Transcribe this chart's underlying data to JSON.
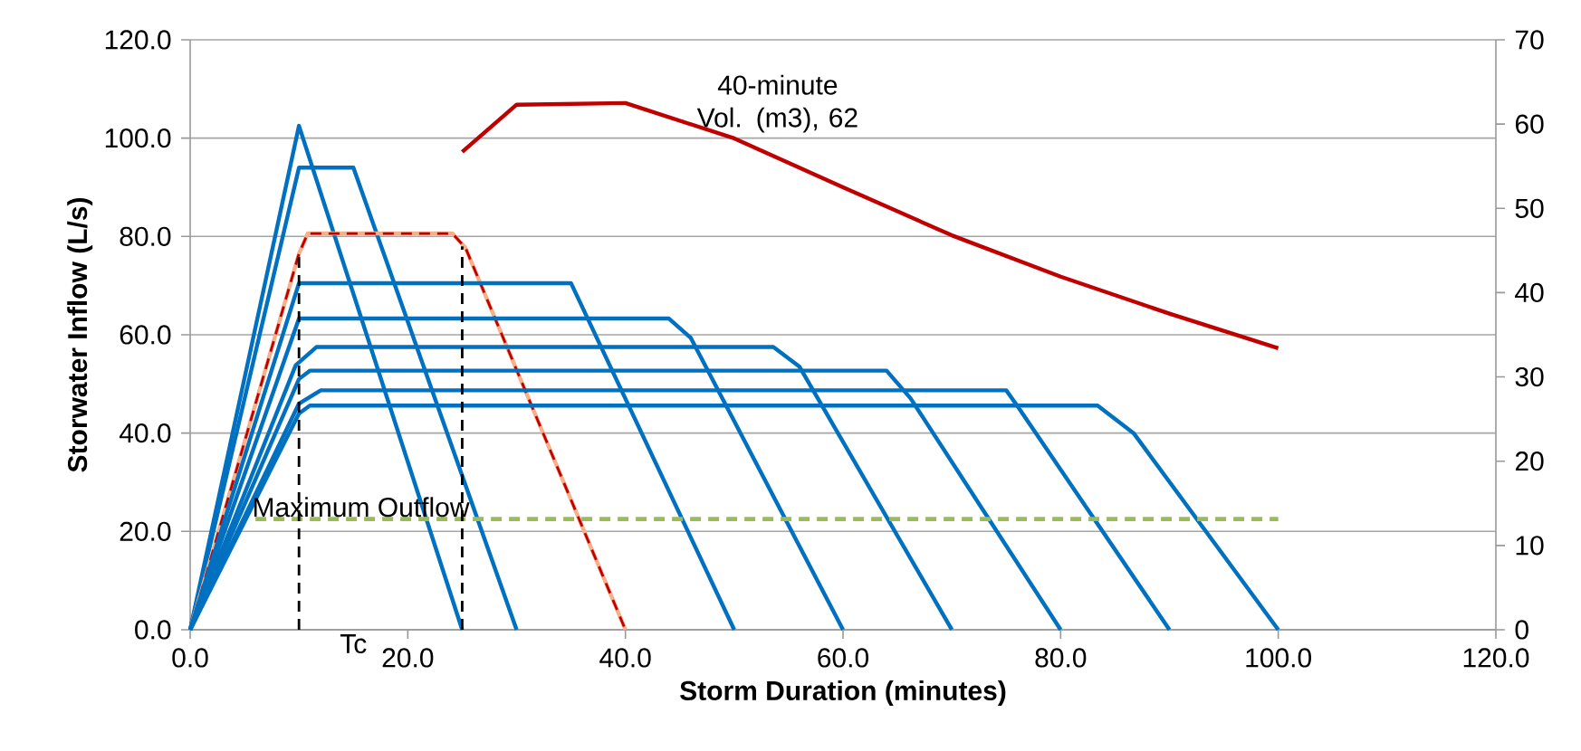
{
  "chart_data": {
    "type": "line",
    "xlabel": "Storm Duration (minutes)",
    "ylabel": "Storwater Inflow (L/s)",
    "xlim": [
      0,
      120
    ],
    "xticks": [
      {
        "value": 0,
        "label": "0.0"
      },
      {
        "value": 20,
        "label": "20.0"
      },
      {
        "value": 40,
        "label": "40.0"
      },
      {
        "value": 60,
        "label": "60.0"
      },
      {
        "value": 80,
        "label": "80.0"
      },
      {
        "value": 100,
        "label": "100.0"
      },
      {
        "value": 120,
        "label": "120.0"
      }
    ],
    "ylim": [
      0,
      120
    ],
    "yticks": [
      {
        "value": 0,
        "label": "0.0"
      },
      {
        "value": 20,
        "label": "20.0"
      },
      {
        "value": 40,
        "label": "40.0"
      },
      {
        "value": 60,
        "label": "60.0"
      },
      {
        "value": 80,
        "label": "80.0"
      },
      {
        "value": 100,
        "label": "100.0"
      },
      {
        "value": 120,
        "label": "120.0"
      }
    ],
    "y2lim": [
      0,
      70
    ],
    "y2ticks": [
      0,
      10,
      20,
      30,
      40,
      50,
      60,
      70
    ],
    "grid": "y",
    "marker": "none",
    "annotations": [
      "Tc",
      "40-minute Vol. (m3), 62"
    ],
    "series": [
      {
        "color": "#0070c0",
        "x": [
          0,
          10,
          25
        ],
        "values": [
          0,
          102.5,
          0
        ]
      },
      {
        "color": "#0070c0",
        "x": [
          0,
          10,
          15,
          30
        ],
        "values": [
          0,
          94,
          94,
          0
        ]
      },
      {
        "color": "#f8b08a",
        "x": [
          0,
          10,
          10.8,
          24.1,
          25.3,
          40
        ],
        "values": [
          0,
          76.5,
          80.6,
          80.6,
          77.7,
          0
        ]
      },
      {
        "color": "#c00000",
        "line_style": "dashed",
        "x": [
          0,
          10,
          10.8,
          24.1,
          25.3,
          40
        ],
        "values": [
          0,
          76.5,
          80.6,
          80.6,
          77.7,
          0
        ]
      },
      {
        "color": "#0070c0",
        "x": [
          0,
          10,
          35,
          50
        ],
        "values": [
          0,
          70.5,
          70.5,
          0
        ]
      },
      {
        "color": "#0070c0",
        "x": [
          0,
          10,
          44,
          46,
          60
        ],
        "values": [
          0,
          63.3,
          63.3,
          59.4,
          0
        ]
      },
      {
        "color": "#0070c0",
        "x": [
          0,
          9.7,
          11.6,
          53.6,
          56,
          70
        ],
        "values": [
          0,
          53.8,
          57.5,
          57.5,
          53.5,
          0
        ]
      },
      {
        "color": "#0070c0",
        "x": [
          0,
          10,
          11,
          64,
          66.2,
          80
        ],
        "values": [
          0,
          51,
          52.7,
          52.7,
          47.1,
          0
        ]
      },
      {
        "color": "#0070c0",
        "x": [
          0,
          10,
          12,
          75,
          76,
          90
        ],
        "values": [
          0,
          46,
          48.7,
          48.7,
          45.6,
          0
        ]
      },
      {
        "color": "#0070c0",
        "x": [
          0,
          10,
          11,
          83.4,
          86.7,
          100
        ],
        "values": [
          0,
          44,
          45.6,
          45.6,
          40,
          0
        ]
      },
      {
        "name": "Maximum Outflow",
        "color": "#9bbb59",
        "line_style": "dashed",
        "x": [
          6,
          100
        ],
        "values": [
          22.5,
          22.5
        ]
      },
      {
        "color": "#000000",
        "line_style": "dashed",
        "x": [
          10,
          10
        ],
        "values": [
          0,
          76.5
        ]
      },
      {
        "color": "#000000",
        "line_style": "dashed",
        "x": [
          25,
          25
        ],
        "values": [
          0,
          78
        ]
      },
      {
        "color": "#c00000",
        "axis": "y2",
        "x": [
          25,
          30,
          40,
          50,
          60,
          70,
          80,
          90,
          100
        ],
        "values": [
          56.7,
          62.3,
          62.5,
          58.3,
          52.5,
          46.8,
          41.9,
          37.5,
          33.4
        ]
      }
    ]
  }
}
